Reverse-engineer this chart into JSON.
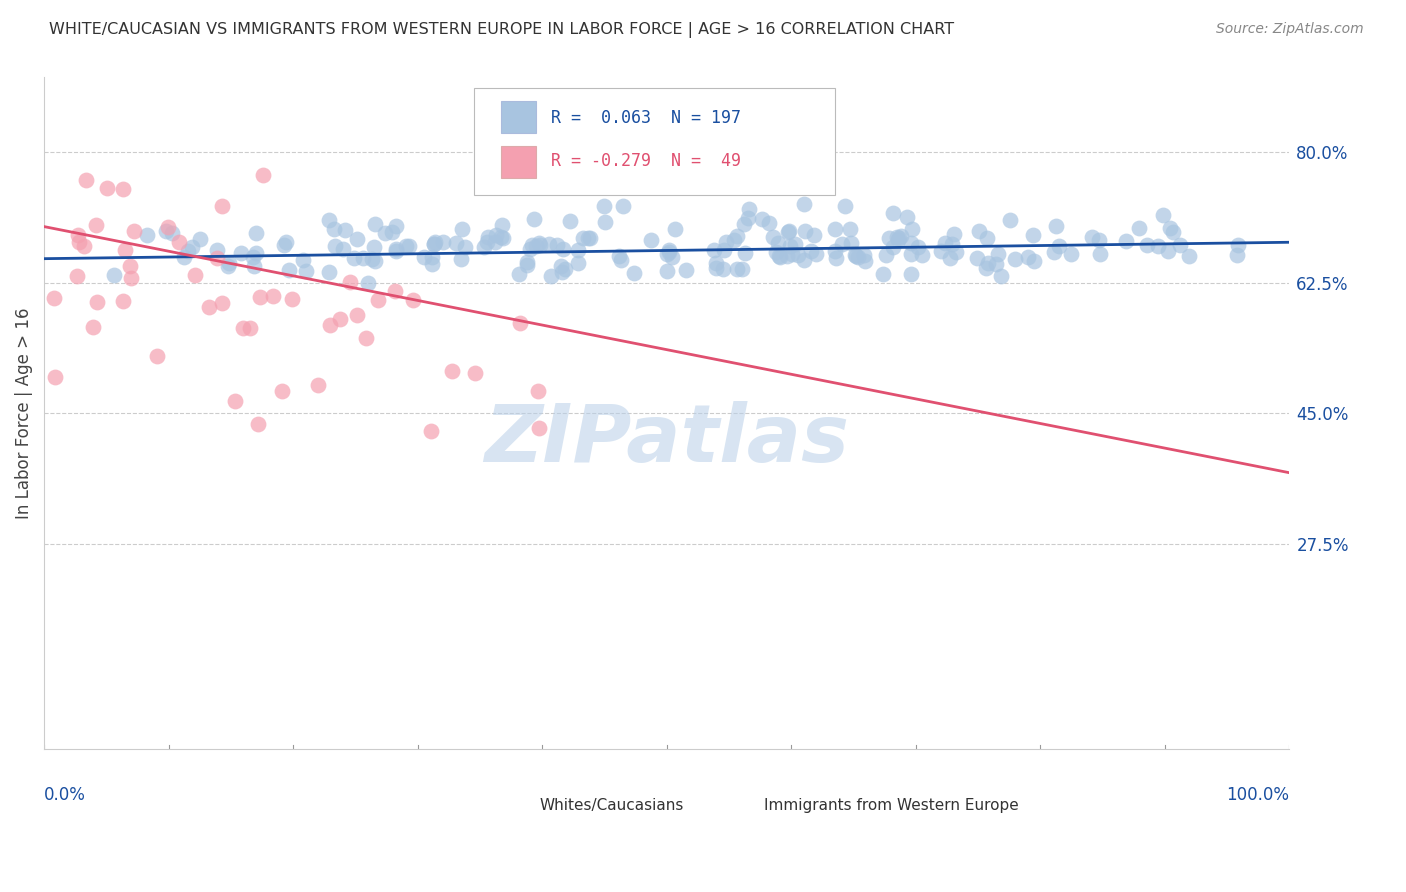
{
  "title": "WHITE/CAUCASIAN VS IMMIGRANTS FROM WESTERN EUROPE IN LABOR FORCE | AGE > 16 CORRELATION CHART",
  "source": "Source: ZipAtlas.com",
  "ylabel": "In Labor Force | Age > 16",
  "blue_R": 0.063,
  "blue_N": 197,
  "pink_R": -0.279,
  "pink_N": 49,
  "blue_color": "#a8c4e0",
  "pink_color": "#f4a0b0",
  "blue_line_color": "#1a4fa0",
  "pink_line_color": "#e05070",
  "legend_blue_label": "Whites/Caucasians",
  "legend_pink_label": "Immigrants from Western Europe",
  "xtick_labels": [
    "0.0%",
    "100.0%"
  ],
  "ytick_labels": [
    "27.5%",
    "45.0%",
    "62.5%",
    "80.0%"
  ],
  "ytick_positions": [
    0.275,
    0.45,
    0.625,
    0.8
  ],
  "ymin": 0.0,
  "ymax": 0.9,
  "xmin": 0.0,
  "xmax": 1.0,
  "watermark": "ZIPatlas",
  "background_color": "#ffffff",
  "blue_scatter_seed": 42,
  "pink_scatter_seed": 123
}
